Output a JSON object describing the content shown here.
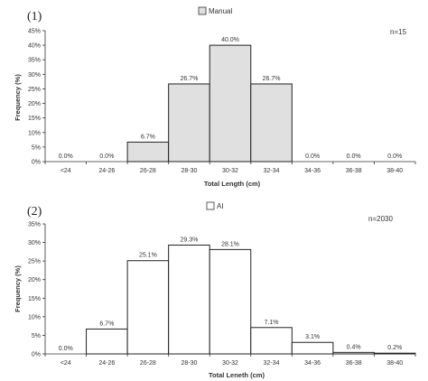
{
  "chart_data": [
    {
      "type": "bar",
      "panel_label": "(1)",
      "legend": "Manual",
      "sample_note": "n=15",
      "xlabel": "Total Length (cm)",
      "ylabel": "Frequency (%)",
      "ylim": [
        0,
        45
      ],
      "yticks": [
        "0%",
        "5%",
        "10%",
        "15%",
        "20%",
        "25%",
        "30%",
        "35%",
        "40%",
        "45%"
      ],
      "bar_color": "#e0e0e0",
      "categories": [
        "<24",
        "24-26",
        "26-28",
        "28-30",
        "30-32",
        "32-34",
        "34-36",
        "36-38",
        "38-40"
      ],
      "values": [
        0.0,
        0.0,
        6.7,
        26.7,
        40.0,
        26.7,
        0.0,
        0.0,
        0.0
      ],
      "data_labels": [
        "0.0%",
        "0.0%",
        "6.7%",
        "26.7%",
        "40.0%",
        "26.7%",
        "0.0%",
        "0.0%",
        "0.0%"
      ],
      "grid": false,
      "legend_position": "top-center"
    },
    {
      "type": "bar",
      "panel_label": "(2)",
      "legend": "AI",
      "sample_note": "n=2030",
      "xlabel": "Total Lenеth (cm)",
      "ylabel": "Frequency (%)",
      "ylim": [
        0,
        35
      ],
      "yticks": [
        "0%",
        "5%",
        "10%",
        "15%",
        "20%",
        "25%",
        "30%",
        "35%"
      ],
      "bar_color": "#ffffff",
      "categories": [
        "<24",
        "24-26",
        "26-28",
        "28-30",
        "30-32",
        "32-34",
        "34-36",
        "36-38",
        "38-40"
      ],
      "values": [
        0.0,
        6.7,
        25.1,
        29.3,
        28.1,
        7.1,
        3.1,
        0.4,
        0.2
      ],
      "data_labels": [
        "0.0%",
        "6.7%",
        "25.1%",
        "29.3%",
        "28.1%",
        "7.1%",
        "3.1%",
        "0.4%",
        "0.2%"
      ],
      "grid": false,
      "legend_position": "top-center"
    }
  ]
}
